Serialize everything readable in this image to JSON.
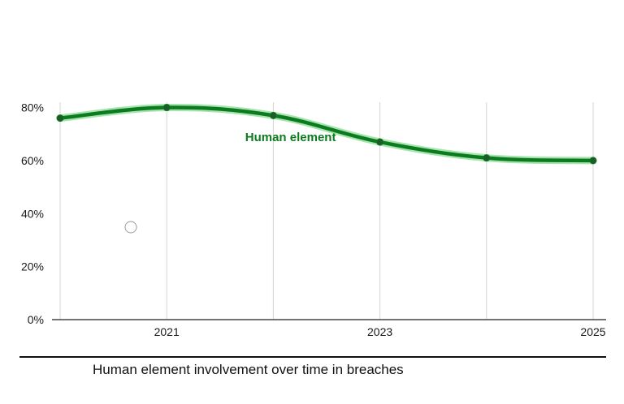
{
  "caption": "Human element involvement over time in breaches",
  "colors": {
    "line": "#0c7a1f",
    "line_glow": "#37c64a",
    "marker": "#1f5b2a",
    "grid": "#d4d4d4",
    "axis": "#222222"
  },
  "chart_data": {
    "type": "line",
    "title": "",
    "xlabel": "",
    "ylabel": "",
    "x": [
      2020,
      2021,
      2022,
      2023,
      2024,
      2025
    ],
    "x_ticks": [
      2020,
      2021,
      2022,
      2023,
      2024,
      2025
    ],
    "x_tick_labels": [
      "2021",
      "2023",
      "2025"
    ],
    "x_tick_label_values": [
      2021,
      2023,
      2025
    ],
    "y_ticks": [
      0,
      20,
      40,
      60,
      80
    ],
    "y_tick_labels": [
      "0%",
      "20%",
      "40%",
      "60%",
      "80%"
    ],
    "ylim": [
      0,
      82
    ],
    "xlim": [
      2020,
      2025
    ],
    "grid": "vertical",
    "series": [
      {
        "name": "Human element",
        "values": [
          76,
          80,
          77,
          67,
          61,
          60
        ]
      }
    ],
    "annotations": [
      {
        "text": "Human element",
        "x": 2022.3,
        "y": 67
      }
    ]
  }
}
